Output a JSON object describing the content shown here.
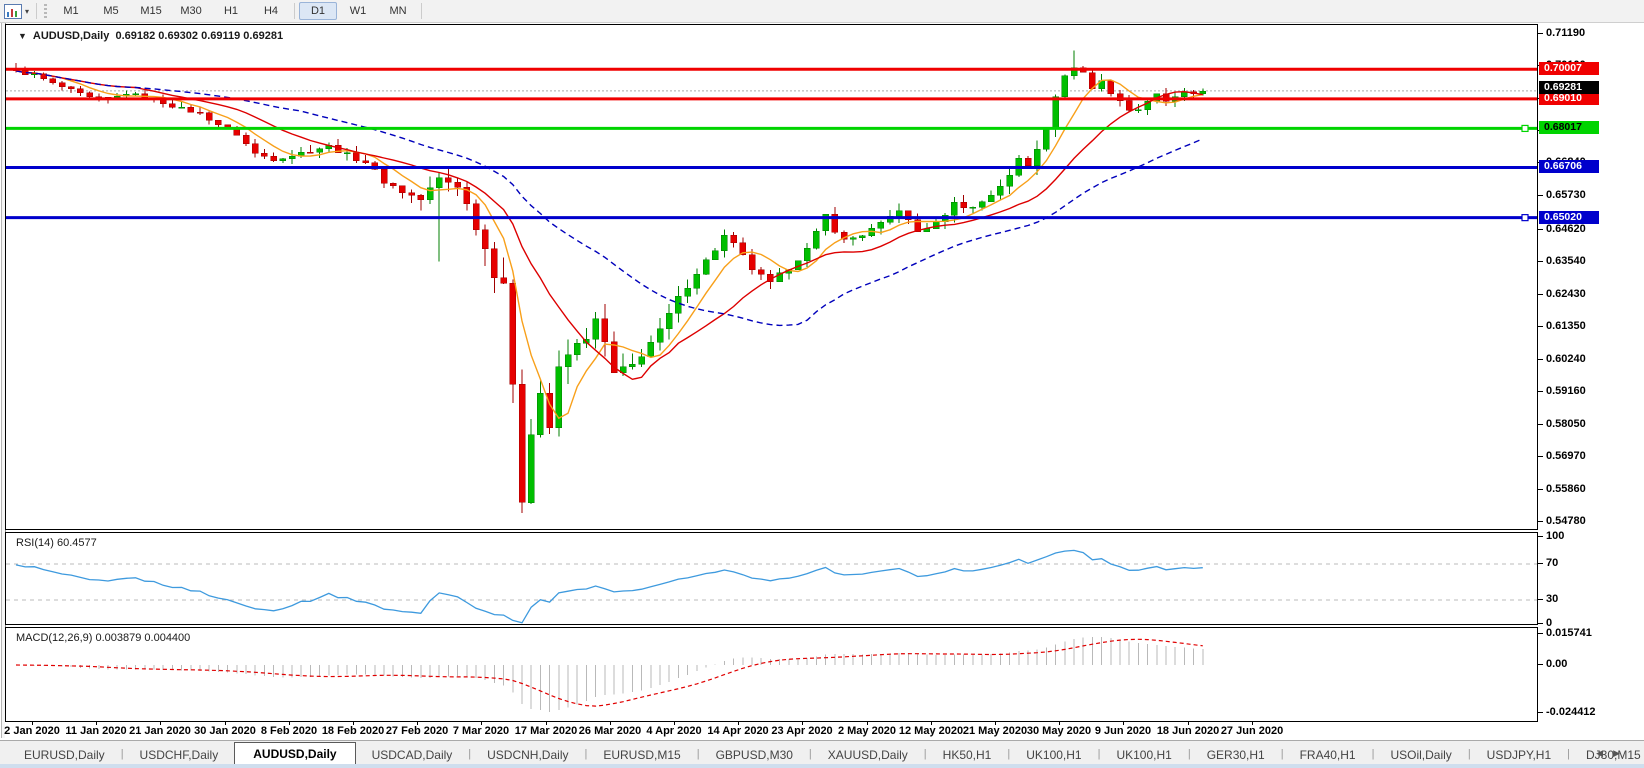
{
  "toolbar": {
    "chart_icon": "chart-type-icon",
    "timeframes": [
      "M1",
      "M5",
      "M15",
      "M30",
      "H1",
      "H4",
      "D1",
      "W1",
      "MN"
    ],
    "active_timeframe": "D1"
  },
  "chart": {
    "title_symbol": "AUDUSD,Daily",
    "title_ohlc": "0.69182 0.69302 0.69119 0.69281",
    "price_axis_ticks": [
      "0.71190",
      "0.70100",
      "0.69020",
      "0.67920",
      "0.66840",
      "0.65730",
      "0.64620",
      "0.63540",
      "0.62430",
      "0.61350",
      "0.60240",
      "0.59160",
      "0.58050",
      "0.56970",
      "0.55860",
      "0.54780"
    ],
    "current_price": {
      "label": "0.69281",
      "value": 0.69281,
      "badge_color": "#000000",
      "text_color": "#ffffff",
      "line_color": "#aaaaaa"
    },
    "hlines": [
      {
        "label": "0.70007",
        "value": 0.70007,
        "color": "#f00000",
        "text_color": "#ffffff",
        "thickness": 3,
        "handles": false
      },
      {
        "label": "0.69010",
        "value": 0.6901,
        "color": "#f00000",
        "text_color": "#ffffff",
        "thickness": 3,
        "handles": false
      },
      {
        "label": "0.68017",
        "value": 0.68017,
        "color": "#00d400",
        "text_color": "#000000",
        "thickness": 3,
        "handles": true
      },
      {
        "label": "0.66706",
        "value": 0.66706,
        "color": "#0000cc",
        "text_color": "#ffffff",
        "thickness": 3,
        "handles": false
      },
      {
        "label": "0.65020",
        "value": 0.6502,
        "color": "#0000cc",
        "text_color": "#ffffff",
        "thickness": 3,
        "handles": true
      }
    ],
    "candle_colors": {
      "up": "#00be00",
      "up_stroke": "#007f00",
      "down": "#e60000",
      "down_stroke": "#a00000"
    }
  },
  "rsi": {
    "label": "RSI(14) 60.4577",
    "axis_labels": [
      {
        "label": "100",
        "value": 100
      },
      {
        "label": "70",
        "value": 70
      },
      {
        "label": "30",
        "value": 30
      },
      {
        "label": "0",
        "value": 0
      }
    ],
    "levels": [
      70,
      30
    ],
    "line_color": "#3e9ade"
  },
  "macd": {
    "label": "MACD(12,26,9) 0.003879 0.004400",
    "axis_labels": [
      {
        "label": "0.015741",
        "value": 0.015741
      },
      {
        "label": "0.00",
        "value": 0
      },
      {
        "label": "-0.024412",
        "value": -0.024412
      }
    ],
    "histogram_color": "#b9b9b9",
    "signal_color": "#e00000"
  },
  "dates": [
    "2 Jan 2020",
    "11 Jan 2020",
    "21 Jan 2020",
    "30 Jan 2020",
    "8 Feb 2020",
    "18 Feb 2020",
    "27 Feb 2020",
    "7 Mar 2020",
    "17 Mar 2020",
    "26 Mar 2020",
    "4 Apr 2020",
    "14 Apr 2020",
    "23 Apr 2020",
    "2 May 2020",
    "12 May 2020",
    "21 May 2020",
    "30 May 2020",
    "9 Jun 2020",
    "18 Jun 2020",
    "27 Jun 2020"
  ],
  "tabs": {
    "items": [
      "EURUSD,Daily",
      "USDCHF,Daily",
      "AUDUSD,Daily",
      "USDCAD,Daily",
      "USDCNH,Daily",
      "EURUSD,M15",
      "GBPUSD,M30",
      "XAUUSD,Daily",
      "HK50,H1",
      "UK100,H1",
      "UK100,H1",
      "GER30,H1",
      "FRA40,H1",
      "USOil,Daily",
      "USDJPY,H1",
      "DJ30,M15"
    ],
    "active_index": 2
  },
  "chart_data": {
    "type": "candlestick",
    "symbol": "AUDUSD",
    "timeframe": "Daily",
    "ohlc_display": {
      "open": "0.69182",
      "high": "0.69302",
      "low": "0.69119",
      "close": "0.69281"
    },
    "bars": 130,
    "price_scale_extremes": [
      0.5478,
      0.7119
    ],
    "close_anchors": [
      [
        0,
        0.6992
      ],
      [
        2,
        0.6982
      ],
      [
        4,
        0.6952
      ],
      [
        6,
        0.693
      ],
      [
        8,
        0.6905
      ],
      [
        10,
        0.6898
      ],
      [
        12,
        0.692
      ],
      [
        14,
        0.6908
      ],
      [
        16,
        0.6888
      ],
      [
        18,
        0.6868
      ],
      [
        20,
        0.6852
      ],
      [
        22,
        0.6815
      ],
      [
        24,
        0.6782
      ],
      [
        26,
        0.6718
      ],
      [
        28,
        0.67
      ],
      [
        30,
        0.6712
      ],
      [
        32,
        0.6728
      ],
      [
        34,
        0.6742
      ],
      [
        36,
        0.6712
      ],
      [
        38,
        0.669
      ],
      [
        40,
        0.6625
      ],
      [
        42,
        0.659
      ],
      [
        44,
        0.6562
      ],
      [
        46,
        0.6632
      ],
      [
        48,
        0.6612
      ],
      [
        50,
        0.6478
      ],
      [
        52,
        0.632
      ],
      [
        53,
        0.629
      ],
      [
        54,
        0.592
      ],
      [
        55,
        0.556
      ],
      [
        56,
        0.5795
      ],
      [
        57,
        0.5915
      ],
      [
        58,
        0.58
      ],
      [
        59,
        0.5985
      ],
      [
        60,
        0.604
      ],
      [
        62,
        0.6105
      ],
      [
        63,
        0.6152
      ],
      [
        64,
        0.608
      ],
      [
        65,
        0.5975
      ],
      [
        66,
        0.599
      ],
      [
        67,
        0.6005
      ],
      [
        68,
        0.6045
      ],
      [
        70,
        0.612
      ],
      [
        72,
        0.623
      ],
      [
        74,
        0.632
      ],
      [
        76,
        0.6395
      ],
      [
        77,
        0.644
      ],
      [
        78,
        0.641
      ],
      [
        80,
        0.633
      ],
      [
        82,
        0.628
      ],
      [
        84,
        0.6335
      ],
      [
        86,
        0.6395
      ],
      [
        87,
        0.645
      ],
      [
        88,
        0.651
      ],
      [
        89,
        0.646
      ],
      [
        90,
        0.6425
      ],
      [
        92,
        0.6445
      ],
      [
        94,
        0.648
      ],
      [
        96,
        0.653
      ],
      [
        97,
        0.649
      ],
      [
        98,
        0.6455
      ],
      [
        100,
        0.6482
      ],
      [
        102,
        0.655
      ],
      [
        104,
        0.6535
      ],
      [
        106,
        0.658
      ],
      [
        108,
        0.664
      ],
      [
        109,
        0.67
      ],
      [
        110,
        0.668
      ],
      [
        111,
        0.674
      ],
      [
        112,
        0.681
      ],
      [
        113,
        0.69
      ],
      [
        114,
        0.6985
      ],
      [
        115,
        0.7005
      ],
      [
        116,
        0.699
      ],
      [
        117,
        0.6935
      ],
      [
        118,
        0.6965
      ],
      [
        119,
        0.692
      ],
      [
        120,
        0.689
      ],
      [
        121,
        0.687
      ],
      [
        122,
        0.686
      ],
      [
        123,
        0.69
      ],
      [
        124,
        0.692
      ],
      [
        125,
        0.6895
      ],
      [
        126,
        0.691
      ],
      [
        127,
        0.692
      ],
      [
        128,
        0.6915
      ],
      [
        129,
        0.6928
      ]
    ],
    "volatility_anchors": [
      [
        0,
        0.003
      ],
      [
        20,
        0.0035
      ],
      [
        40,
        0.005
      ],
      [
        48,
        0.0085
      ],
      [
        52,
        0.012
      ],
      [
        56,
        0.015
      ],
      [
        60,
        0.011
      ],
      [
        66,
        0.008
      ],
      [
        75,
        0.0055
      ],
      [
        90,
        0.0045
      ],
      [
        105,
        0.0045
      ],
      [
        112,
        0.006
      ],
      [
        118,
        0.0045
      ],
      [
        129,
        0.0035
      ]
    ],
    "wick_overrides": {
      "0": {
        "high": 0.7022
      },
      "46": {
        "low": 0.6355
      },
      "54": {
        "low": 0.588
      },
      "55": {
        "low": 0.551
      },
      "115": {
        "high": 0.7064
      }
    },
    "ma_lines": [
      {
        "name": "fast",
        "period": 6,
        "color": "#f8a01a",
        "style": "solid"
      },
      {
        "name": "medium",
        "period": 14,
        "color": "#dd0000",
        "style": "solid"
      },
      {
        "name": "slow",
        "period": 32,
        "color": "#0000bb",
        "style": "dashed"
      }
    ],
    "indicators": {
      "rsi_period": 14,
      "macd_params": [
        12,
        26,
        9
      ]
    }
  }
}
